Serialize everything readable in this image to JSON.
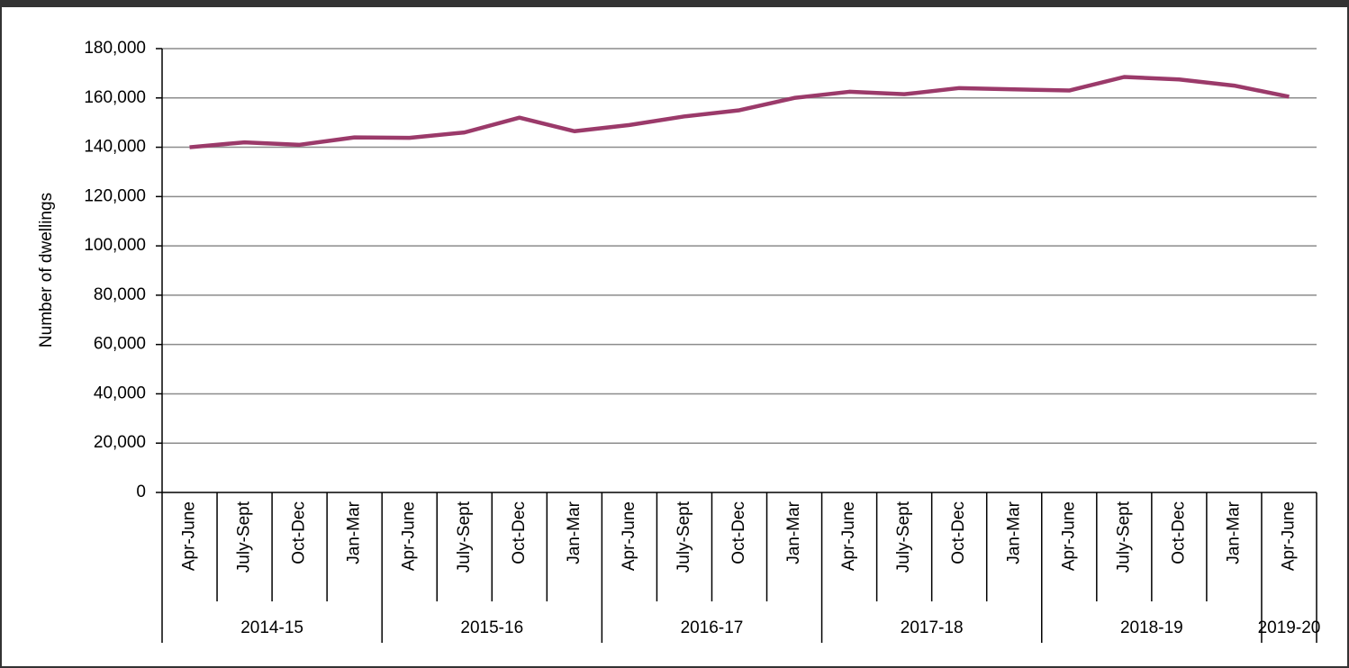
{
  "chart_data": {
    "type": "line",
    "y_label": "Number of dwellings",
    "groups": [
      {
        "name": "2014-15",
        "categories": [
          "Apr-June",
          "July-Sept",
          "Oct-Dec",
          "Jan-Mar"
        ]
      },
      {
        "name": "2015-16",
        "categories": [
          "Apr-June",
          "July-Sept",
          "Oct-Dec",
          "Jan-Mar"
        ]
      },
      {
        "name": "2016-17",
        "categories": [
          "Apr-June",
          "July-Sept",
          "Oct-Dec",
          "Jan-Mar"
        ]
      },
      {
        "name": "2017-18",
        "categories": [
          "Apr-June",
          "July-Sept",
          "Oct-Dec",
          "Jan-Mar"
        ]
      },
      {
        "name": "2018-19",
        "categories": [
          "Apr-June",
          "July-Sept",
          "Oct-Dec",
          "Jan-Mar"
        ]
      },
      {
        "name": "2019-20",
        "categories": [
          "Apr-June"
        ]
      }
    ],
    "color": "#9b3a6a",
    "values": [
      140000,
      142000,
      141000,
      144000,
      143800,
      146000,
      152000,
      146500,
      149000,
      152500,
      155000,
      160000,
      162500,
      161500,
      164000,
      163500,
      163000,
      168500,
      167500,
      165000,
      160500
    ],
    "ylim": [
      0,
      180000
    ],
    "yticks": [
      0,
      {
        "value": 20000,
        "label": "20,000"
      },
      {
        "value": 40000,
        "label": "40,000"
      },
      {
        "value": 60000,
        "label": "60,000"
      },
      {
        "value": 80000,
        "label": "80,000"
      },
      {
        "value": 100000,
        "label": "100,000"
      },
      {
        "value": 120000,
        "label": "120,000"
      },
      {
        "value": 140000,
        "label": "140,000"
      },
      {
        "value": 160000,
        "label": "160,000"
      },
      {
        "value": 180000,
        "label": "180,000"
      }
    ],
    "grid": true
  }
}
